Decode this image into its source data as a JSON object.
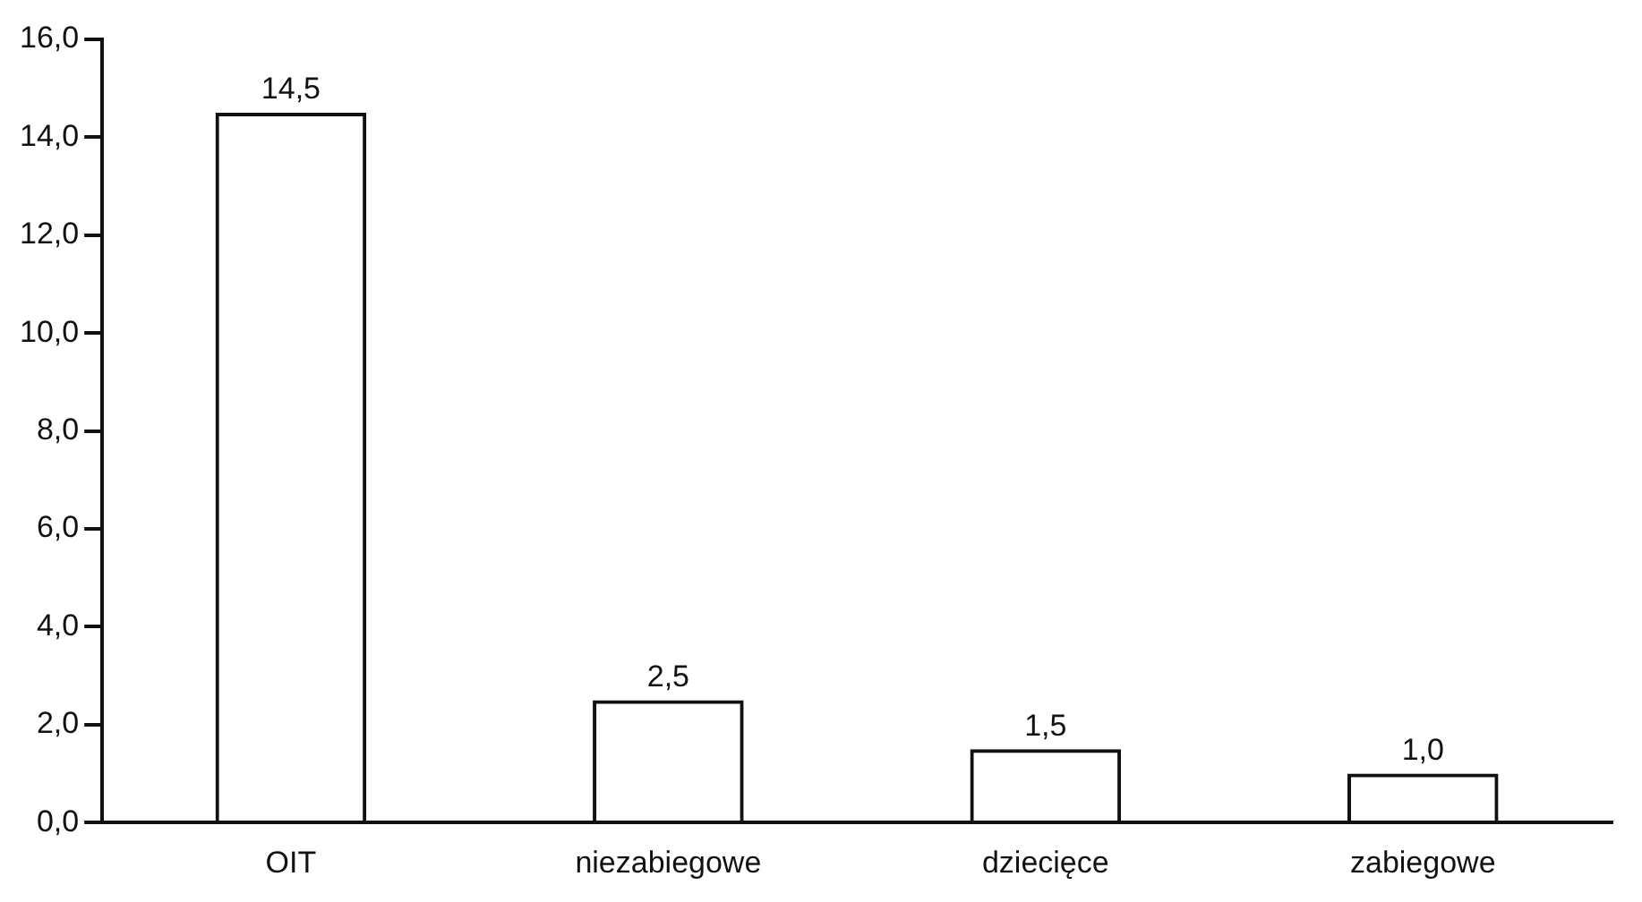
{
  "chart_data": {
    "type": "bar",
    "categories": [
      "OIT",
      "niezabiegowe",
      "dziecięce",
      "zabiegowe"
    ],
    "values": [
      14.5,
      2.5,
      1.5,
      1.0
    ],
    "value_labels": [
      "14,5",
      "2,5",
      "1,5",
      "1,0"
    ],
    "color": "#111111",
    "ylim": [
      0,
      16
    ],
    "yticks": [
      {
        "value": 0,
        "label": "0,0"
      },
      {
        "value": 2,
        "label": "2,0"
      },
      {
        "value": 4,
        "label": "4,0"
      },
      {
        "value": 6,
        "label": "6,0"
      },
      {
        "value": 8,
        "label": "8,0"
      },
      {
        "value": 10,
        "label": "10,0"
      },
      {
        "value": 12,
        "label": "12,0"
      },
      {
        "value": 14,
        "label": "14,0"
      },
      {
        "value": 16,
        "label": "16,0"
      }
    ],
    "grid": false,
    "legend": false
  }
}
